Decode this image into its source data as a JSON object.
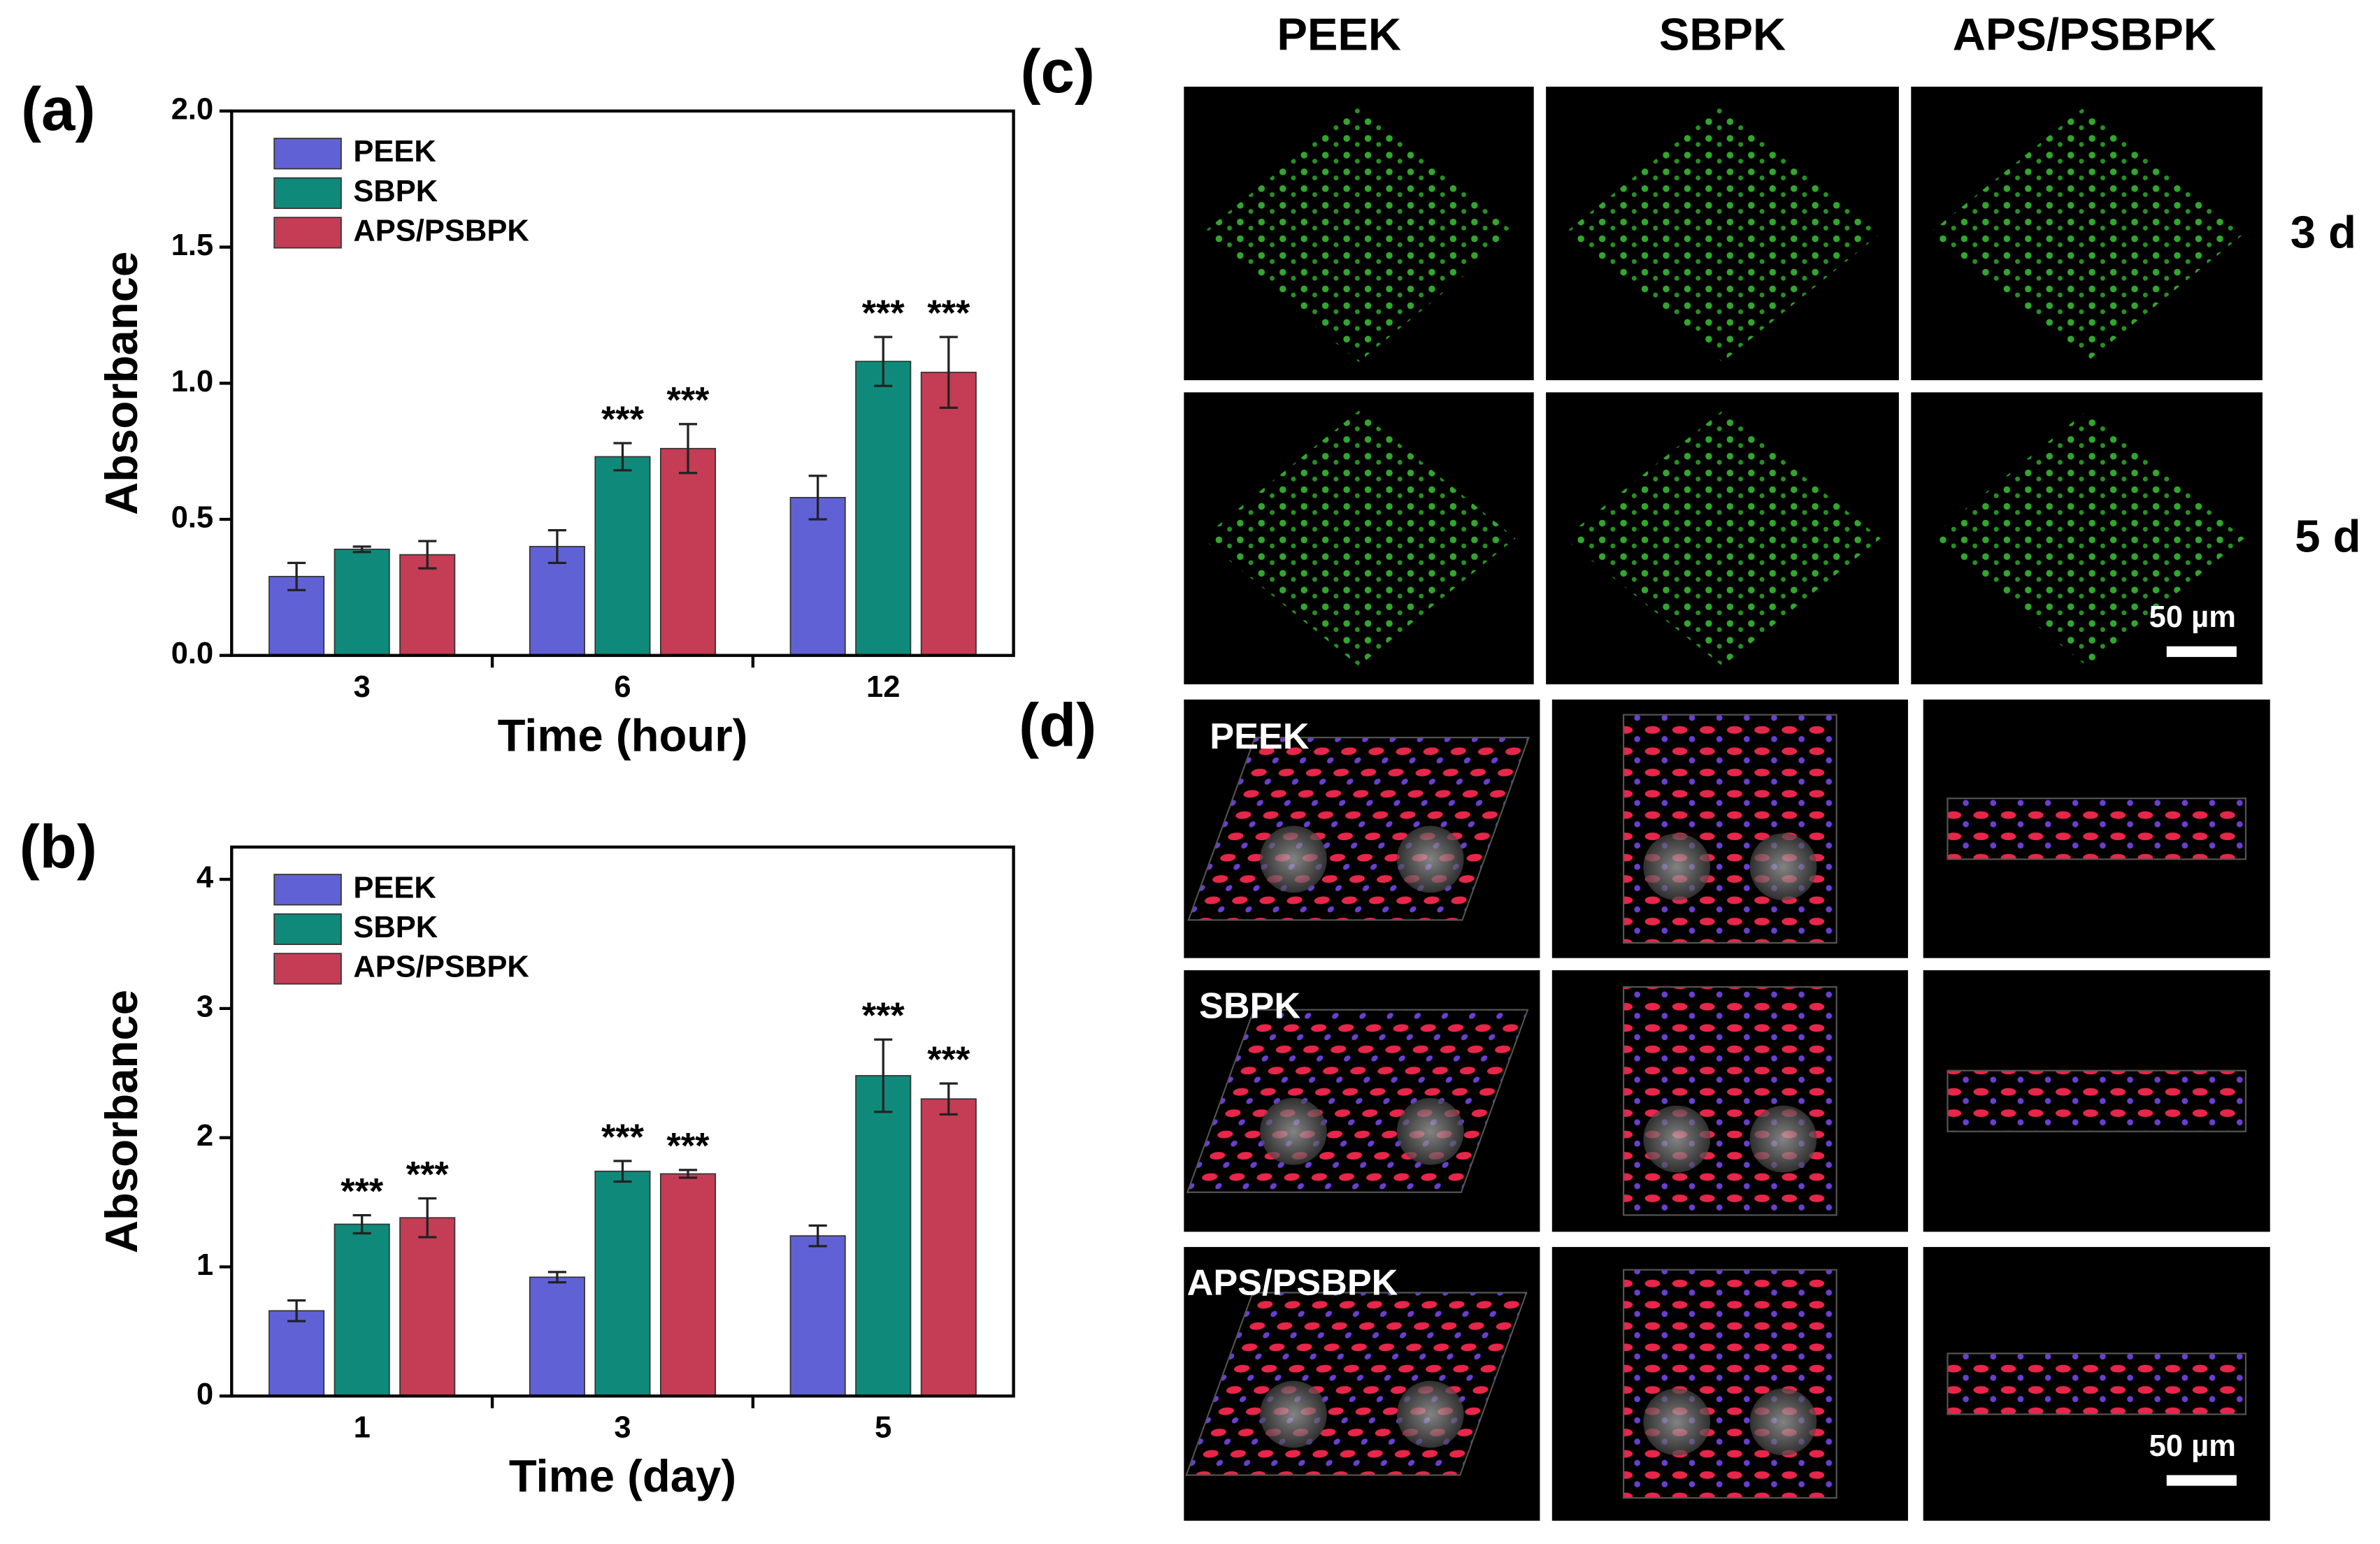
{
  "chart_data": [
    {
      "type": "bar",
      "label": "(a)",
      "x_label": "Time (hour)",
      "y_label": "Absorbance",
      "categories": [
        "3",
        "6",
        "12"
      ],
      "series": [
        {
          "name": "PEEK",
          "color": "#6161d6",
          "values": [
            0.29,
            0.4,
            0.58
          ],
          "errors": [
            0.05,
            0.06,
            0.08
          ]
        },
        {
          "name": "SBPK",
          "color": "#0f8a7a",
          "values": [
            0.39,
            0.73,
            1.08
          ],
          "errors": [
            0.01,
            0.05,
            0.09
          ],
          "significance": [
            null,
            "***",
            "***"
          ]
        },
        {
          "name": "APS/PSBPK",
          "color": "#c43d55",
          "values": [
            0.37,
            0.76,
            1.04
          ],
          "errors": [
            0.05,
            0.09,
            0.13
          ],
          "significance": [
            null,
            "***",
            "***"
          ]
        }
      ],
      "ylim": [
        0,
        2
      ],
      "yticks": [
        {
          "value": 0,
          "label": "0.0"
        },
        0.5,
        {
          "value": 1,
          "label": "1.0"
        },
        1.5,
        {
          "value": 2,
          "label": "2.0"
        }
      ],
      "legend": "upper left",
      "grid": false
    },
    {
      "type": "bar",
      "label": "(b)",
      "x_label": "Time (day)",
      "y_label": "Absorbance",
      "categories": [
        "1",
        "3",
        "5"
      ],
      "series": [
        {
          "name": "PEEK",
          "color": "#6161d6",
          "values": [
            0.66,
            0.92,
            1.24
          ],
          "errors": [
            0.08,
            0.04,
            0.08
          ]
        },
        {
          "name": "SBPK",
          "color": "#0f8a7a",
          "values": [
            1.33,
            1.74,
            2.48
          ],
          "errors": [
            0.07,
            0.08,
            0.28
          ],
          "significance": [
            "***",
            "***",
            "***"
          ]
        },
        {
          "name": "APS/PSBPK",
          "color": "#c43d55",
          "values": [
            1.38,
            1.72,
            2.3
          ],
          "errors": [
            0.15,
            0.03,
            0.12
          ],
          "significance": [
            "***",
            "***",
            "***"
          ]
        }
      ],
      "ylim": [
        0,
        4.25
      ],
      "yticks": [
        0,
        1,
        2,
        3,
        4
      ],
      "legend": "upper left",
      "grid": false
    }
  ],
  "panel_c": {
    "label": "(c)",
    "columns": [
      "PEEK",
      "SBPK",
      "APS/PSBPK"
    ],
    "rows": [
      "3 d",
      "5 d"
    ],
    "scale_bar": "50 µm"
  },
  "panel_d": {
    "label": "(d)",
    "rows": [
      "PEEK",
      "SBPK",
      "APS/PSBPK"
    ],
    "scale_bar": "50 µm"
  }
}
